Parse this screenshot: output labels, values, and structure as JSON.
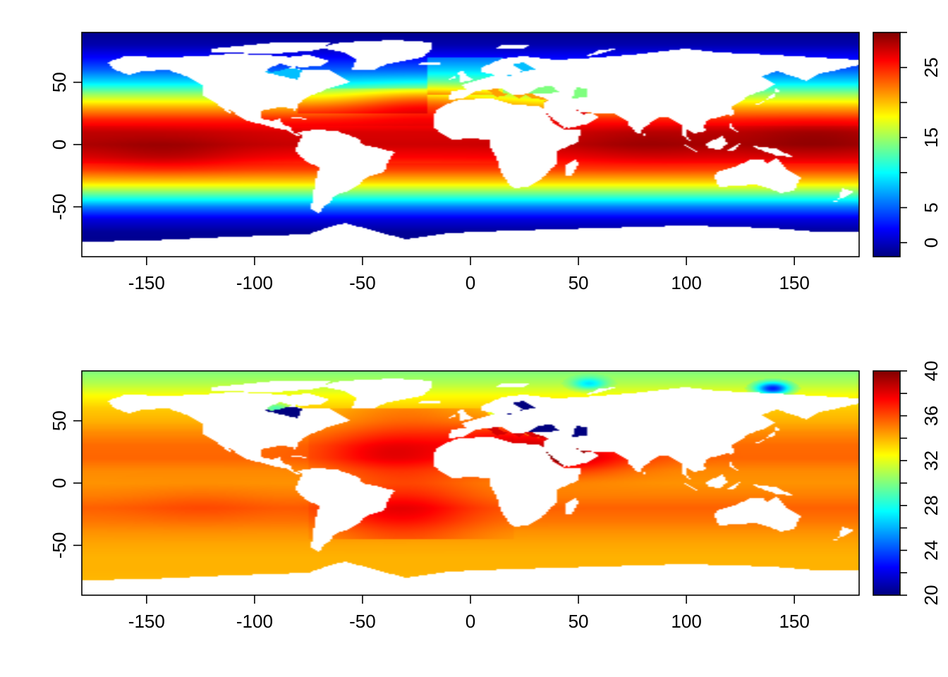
{
  "chart_data": [
    {
      "type": "heatmap",
      "title": "",
      "xlabel": "",
      "ylabel": "",
      "xlim": [
        -180,
        180
      ],
      "ylim": [
        -90,
        90
      ],
      "x_ticks": [
        -150,
        -100,
        -50,
        0,
        50,
        100,
        150
      ],
      "y_ticks": [
        -50,
        0,
        50
      ],
      "x_tick_labels": [
        "-150",
        "-100",
        "-50",
        "0",
        "50",
        "100",
        "150"
      ],
      "y_tick_labels": [
        "-50",
        "0",
        "50"
      ],
      "data_extent_lat": [
        -78,
        90
      ],
      "color_scale": {
        "range": [
          -2,
          30
        ],
        "ticks": [
          0,
          5,
          15,
          25
        ],
        "tick_labels": [
          "0",
          "5",
          "15",
          "25"
        ],
        "minor_ticks": [
          0,
          5,
          10,
          15,
          20,
          25,
          30
        ],
        "colormap": [
          "#00007f",
          "#0000ff",
          "#007fff",
          "#00ffff",
          "#7fff7f",
          "#ffff00",
          "#ff7f00",
          "#ff0000",
          "#7f0000"
        ]
      },
      "latitude_profile": {
        "lat": [
          -78,
          -70,
          -60,
          -50,
          -40,
          -30,
          -20,
          -10,
          0,
          10,
          20,
          30,
          40,
          50,
          60,
          70,
          80,
          90
        ],
        "value": [
          -1.5,
          -1.2,
          1.0,
          6.0,
          13.0,
          19.5,
          24.0,
          26.5,
          28.0,
          27.5,
          25.0,
          20.5,
          15.0,
          9.0,
          5.0,
          2.0,
          -0.5,
          -1.5
        ]
      },
      "hot_spots": [
        {
          "lon": -140,
          "lat": -8,
          "value": 29
        },
        {
          "lon": 80,
          "lat": 0,
          "value": 29.5
        },
        {
          "lon": 160,
          "lat": 5,
          "value": 29.5
        },
        {
          "lon": -30,
          "lat": 35,
          "value": 22
        },
        {
          "lon": -5,
          "lat": 35,
          "value": 21
        }
      ]
    },
    {
      "type": "heatmap",
      "title": "",
      "xlabel": "",
      "ylabel": "",
      "xlim": [
        -180,
        180
      ],
      "ylim": [
        -90,
        90
      ],
      "x_ticks": [
        -150,
        -100,
        -50,
        0,
        50,
        100,
        150
      ],
      "y_ticks": [
        -50,
        0,
        50
      ],
      "x_tick_labels": [
        "-150",
        "-100",
        "-50",
        "0",
        "50",
        "100",
        "150"
      ],
      "y_tick_labels": [
        "-50",
        "0",
        "50"
      ],
      "data_extent_lat": [
        -78,
        90
      ],
      "color_scale": {
        "range": [
          20,
          40
        ],
        "ticks": [
          20,
          24,
          28,
          32,
          36,
          40
        ],
        "tick_labels": [
          "20",
          "24",
          "28",
          "32",
          "36",
          "40"
        ],
        "minor_ticks": [
          20,
          22,
          24,
          26,
          28,
          30,
          32,
          34,
          36,
          38,
          40
        ],
        "colormap": [
          "#00007f",
          "#0000ff",
          "#007fff",
          "#00ffff",
          "#7fff7f",
          "#ffff00",
          "#ff7f00",
          "#ff0000",
          "#7f0000"
        ]
      },
      "latitude_profile": {
        "lat": [
          -78,
          -70,
          -60,
          -50,
          -40,
          -30,
          -20,
          -10,
          0,
          10,
          20,
          30,
          40,
          50,
          60,
          70,
          80,
          90
        ],
        "value": [
          33.9,
          34.0,
          34.0,
          34.2,
          34.6,
          35.2,
          35.6,
          35.0,
          34.6,
          34.8,
          35.5,
          35.4,
          34.8,
          34.0,
          33.5,
          32.5,
          31.5,
          31.0
        ],
        "atlantic_offset": 1.4
      },
      "hot_spots": [
        {
          "lon": -35,
          "lat": -22,
          "value": 37.2
        },
        {
          "lon": -40,
          "lat": 25,
          "value": 37.5
        },
        {
          "lon": 20,
          "lat": 35,
          "value": 38.5
        },
        {
          "lon": 38,
          "lat": 20,
          "value": 39.5
        },
        {
          "lon": 60,
          "lat": 22,
          "value": 36.8
        },
        {
          "lon": -125,
          "lat": -18,
          "value": 36.3
        }
      ],
      "fresh_spots": [
        {
          "lon": 20,
          "lat": 58,
          "value": 20
        },
        {
          "lon": 35,
          "lat": 44,
          "value": 20
        },
        {
          "lon": 51,
          "lat": 42,
          "value": 20
        },
        {
          "lon": 55,
          "lat": 80,
          "value": 27
        },
        {
          "lon": 140,
          "lat": 76,
          "value": 23
        },
        {
          "lon": -90,
          "lat": 60,
          "value": 29
        }
      ]
    }
  ]
}
